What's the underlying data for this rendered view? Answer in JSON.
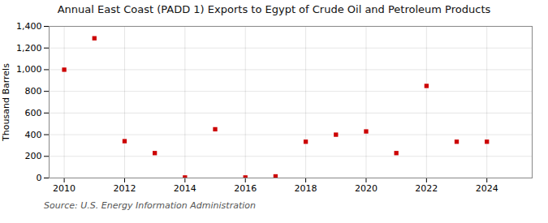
{
  "chart_data": {
    "type": "scatter",
    "title": "Annual East Coast (PADD 1) Exports to Egypt of Crude Oil and Petroleum Products",
    "ylabel": "Thousand Barrels",
    "source": "Source: U.S. Energy Information Administration",
    "x": [
      2010,
      2011,
      2012,
      2013,
      2014,
      2015,
      2016,
      2017,
      2018,
      2019,
      2020,
      2021,
      2022,
      2023,
      2024
    ],
    "values": [
      1000,
      1290,
      340,
      230,
      5,
      450,
      5,
      15,
      335,
      400,
      430,
      230,
      850,
      335,
      335
    ],
    "color": "#cc0000",
    "marker": "square",
    "xlim": [
      2009.5,
      2025.5
    ],
    "xticks": [
      2010,
      2012,
      2014,
      2016,
      2018,
      2020,
      2022,
      2024
    ],
    "ylim": [
      0,
      1400
    ],
    "yticks": [
      0,
      200,
      400,
      600,
      800,
      {
        "value": 1000,
        "label": "1,000"
      },
      {
        "value": 1200,
        "label": "1,200"
      },
      {
        "value": 1400,
        "label": "1,400"
      }
    ],
    "grid": true
  }
}
